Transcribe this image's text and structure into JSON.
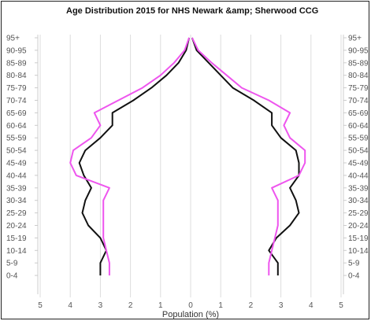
{
  "chart_data": {
    "type": "line",
    "title": "Age Distribution 2015 for NHS Newark &amp; Sherwood CCG",
    "xlabel": "Population (%)",
    "x_ticks_left": [
      "5",
      "4",
      "3",
      "2",
      "1",
      "0"
    ],
    "x_ticks_right": [
      "1",
      "2",
      "3",
      "4",
      "5"
    ],
    "xlim": [
      -5,
      5
    ],
    "grid": "vertical",
    "colors": {
      "series_a": "#111111",
      "series_b": "#ee55ee"
    },
    "age_groups": [
      "95+",
      "90-95",
      "85-89",
      "80-84",
      "75-79",
      "70-74",
      "65-69",
      "60-64",
      "55-59",
      "50-54",
      "45-49",
      "40-44",
      "35-39",
      "30-34",
      "25-29",
      "20-24",
      "15-19",
      "10-14",
      "5-9",
      "0-4"
    ],
    "series": [
      {
        "color": "#111111",
        "side": "left",
        "values": [
          0.05,
          0.15,
          0.4,
          0.8,
          1.3,
          1.9,
          2.6,
          2.6,
          3.0,
          3.5,
          3.7,
          3.55,
          3.3,
          3.5,
          3.6,
          3.4,
          3.0,
          2.8,
          3.0,
          3.0
        ]
      },
      {
        "color": "#ee55ee",
        "side": "left",
        "values": [
          0.05,
          0.2,
          0.55,
          1.0,
          1.6,
          2.4,
          3.2,
          3.0,
          3.3,
          3.9,
          4.0,
          3.8,
          2.7,
          2.9,
          2.9,
          2.9,
          2.9,
          2.8,
          2.7,
          2.7
        ]
      },
      {
        "color": "#111111",
        "side": "right",
        "values": [
          0.05,
          0.2,
          0.6,
          1.0,
          1.4,
          2.1,
          2.7,
          2.7,
          3.0,
          3.5,
          3.6,
          3.6,
          3.3,
          3.5,
          3.6,
          3.3,
          2.85,
          2.6,
          2.9,
          2.9
        ]
      },
      {
        "color": "#ee55ee",
        "side": "right",
        "values": [
          0.05,
          0.25,
          0.7,
          1.2,
          1.7,
          2.6,
          3.3,
          3.1,
          3.3,
          3.8,
          3.8,
          3.6,
          2.7,
          2.9,
          2.9,
          2.9,
          2.8,
          2.7,
          2.6,
          2.6
        ]
      }
    ]
  }
}
